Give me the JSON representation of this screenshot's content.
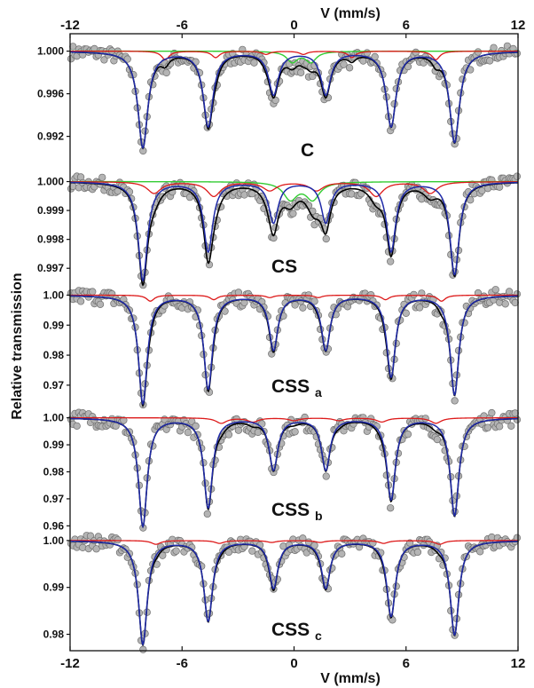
{
  "chart_data": {
    "type": "line",
    "xlabel": "V (mm/s)",
    "ylabel": "Relative transmission",
    "xlim": [
      -12,
      12
    ],
    "x_ticks": [
      -12,
      -6,
      0,
      6,
      12
    ],
    "x_tick_labels": [
      "-12",
      "-6",
      "0",
      "6",
      "12"
    ],
    "x_axis_position": "top-and-bottom",
    "grid": false,
    "series_colors": {
      "data": "#b4b4b4",
      "total_fit": "#000000",
      "sextet_main": "#1f2aa8",
      "sextet_minor": "#dd1a1a",
      "doublet": "#33cc33"
    },
    "panels": [
      {
        "label": "C",
        "label_sub": "",
        "ylim": [
          0.9893,
          1.0008
        ],
        "y_ticks": [
          1.0,
          0.996,
          0.992
        ],
        "y_tick_labels": [
          "1.000",
          "0.996",
          "0.992"
        ],
        "sextet_main": {
          "center": 0.3,
          "lines": [
            -8.1,
            -4.6,
            -1.1,
            1.7,
            5.2,
            8.6
          ],
          "depths": [
            0.009,
            0.007,
            0.004,
            0.004,
            0.007,
            0.0085
          ],
          "hwhm": 0.32
        },
        "sextet_minor": {
          "center": 0.3,
          "lines": [
            -6.9,
            -4.2,
            -1.5,
            0.5,
            3.1,
            7.6
          ],
          "depths": [
            0.0008,
            0.0006,
            0.0003,
            0.0003,
            0.0006,
            0.0008
          ],
          "hwhm": 0.25
        },
        "doublet": {
          "lines": [
            -0.1,
            0.9
          ],
          "depths": [
            0.001,
            0.001
          ],
          "hwhm": 0.35
        }
      },
      {
        "label": "CS",
        "label_sub": "",
        "ylim": [
          0.9963,
          1.0006
        ],
        "y_ticks": [
          1.0,
          0.999,
          0.998,
          0.997
        ],
        "y_tick_labels": [
          "1.000",
          "0.999",
          "0.998",
          "0.997"
        ],
        "sextet_main": {
          "center": 0.3,
          "lines": [
            -8.1,
            -4.6,
            -1.1,
            1.7,
            5.2,
            8.6
          ],
          "depths": [
            0.0034,
            0.0024,
            0.0014,
            0.0014,
            0.0024,
            0.0032
          ],
          "hwhm": 0.3
        },
        "sextet_minor": {
          "center": 0.3,
          "lines": [
            -7.5,
            -4.3,
            -1.3,
            1.2,
            4.4,
            7.3
          ],
          "depths": [
            0.0004,
            0.0005,
            0.0003,
            0.0003,
            0.0005,
            0.0004
          ],
          "hwhm": 0.45
        },
        "doublet": {
          "lines": [
            -0.2,
            1.0
          ],
          "depths": [
            0.0006,
            0.0006
          ],
          "hwhm": 0.45
        }
      },
      {
        "label": "CSS",
        "label_sub": "a",
        "ylim": [
          0.9605,
          1.0025
        ],
        "y_ticks": [
          1.0,
          0.99,
          0.98,
          0.97
        ],
        "y_tick_labels": [
          "1.00",
          "0.99",
          "0.98",
          "0.97"
        ],
        "sextet_main": {
          "center": 0.3,
          "lines": [
            -8.1,
            -4.6,
            -1.1,
            1.7,
            5.2,
            8.6
          ],
          "depths": [
            0.036,
            0.031,
            0.018,
            0.018,
            0.027,
            0.033
          ],
          "hwhm": 0.28
        },
        "sextet_minor": {
          "center": 0.3,
          "lines": [
            -7.7,
            -4.3,
            -1.3,
            1.3,
            4.9,
            7.9
          ],
          "depths": [
            0.002,
            0.0015,
            0.0008,
            0.0008,
            0.0015,
            0.002
          ],
          "hwhm": 0.25
        },
        "doublet": null
      },
      {
        "label": "CSS",
        "label_sub": "b",
        "ylim": [
          0.9565,
          1.0025
        ],
        "y_ticks": [
          1.0,
          0.99,
          0.98,
          0.97,
          0.96
        ],
        "y_tick_labels": [
          "1.00",
          "0.99",
          "0.98",
          "0.97",
          "0.96"
        ],
        "sextet_main": {
          "center": 0.3,
          "lines": [
            -8.1,
            -4.6,
            -1.1,
            1.7,
            5.2,
            8.6
          ],
          "depths": [
            0.04,
            0.033,
            0.019,
            0.019,
            0.03,
            0.036
          ],
          "hwhm": 0.28
        },
        "sextet_minor": {
          "center": 0.3,
          "lines": [
            -3.9,
            -2.2,
            0.0,
            2.4,
            4.7,
            7.6
          ],
          "depths": [
            0.002,
            0.0015,
            0.001,
            0.001,
            0.0015,
            0.002
          ],
          "hwhm": 0.35
        },
        "doublet": null
      },
      {
        "label": "CSS",
        "label_sub": "c",
        "ylim": [
          0.9765,
          1.0013
        ],
        "y_ticks": [
          1.0,
          0.99,
          0.98
        ],
        "y_tick_labels": [
          "1.00",
          "0.99",
          "0.98"
        ],
        "sextet_main": {
          "center": 0.3,
          "lines": [
            -8.1,
            -4.6,
            -1.1,
            1.7,
            5.2,
            8.6
          ],
          "depths": [
            0.022,
            0.017,
            0.01,
            0.01,
            0.016,
            0.02
          ],
          "hwhm": 0.28
        },
        "sextet_minor": {
          "center": 0.3,
          "lines": [
            -7.4,
            -4.0,
            -1.2,
            1.4,
            4.8,
            7.8
          ],
          "depths": [
            0.0008,
            0.0006,
            0.0004,
            0.0004,
            0.0006,
            0.0008
          ],
          "hwhm": 0.3
        },
        "doublet": null
      }
    ]
  }
}
